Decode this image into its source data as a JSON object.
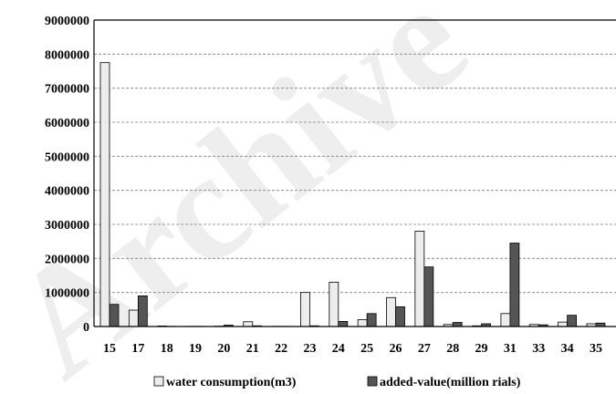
{
  "chart_data": {
    "type": "bar",
    "title": "",
    "xlabel": "",
    "ylabel": "",
    "ylim": [
      0,
      9000000
    ],
    "y_ticks": [
      0,
      1000000,
      2000000,
      3000000,
      4000000,
      5000000,
      6000000,
      7000000,
      8000000,
      9000000
    ],
    "y_tick_labels": [
      "0",
      "1000000",
      "2000000",
      "3000000",
      "4000000",
      "5000000",
      "6000000",
      "7000000",
      "8000000",
      "9000000"
    ],
    "grid": true,
    "legend_position": "bottom",
    "categories": [
      "15",
      "17",
      "18",
      "19",
      "20",
      "21",
      "22",
      "23",
      "24",
      "25",
      "26",
      "27",
      "28",
      "29",
      "31",
      "33",
      "34",
      "35"
    ],
    "series": [
      {
        "name": "water consumption(m3)",
        "color": "#ededed",
        "values": [
          7750000,
          480000,
          15000,
          5000,
          10000,
          140000,
          5000,
          1000000,
          1300000,
          200000,
          850000,
          2800000,
          60000,
          20000,
          380000,
          60000,
          130000,
          80000
        ]
      },
      {
        "name": "added-value(million rials)",
        "color": "#555555",
        "values": [
          650000,
          900000,
          5000,
          5000,
          40000,
          20000,
          5000,
          20000,
          150000,
          380000,
          580000,
          1750000,
          120000,
          80000,
          2450000,
          50000,
          330000,
          100000
        ]
      }
    ]
  },
  "watermark_text": "Archive"
}
